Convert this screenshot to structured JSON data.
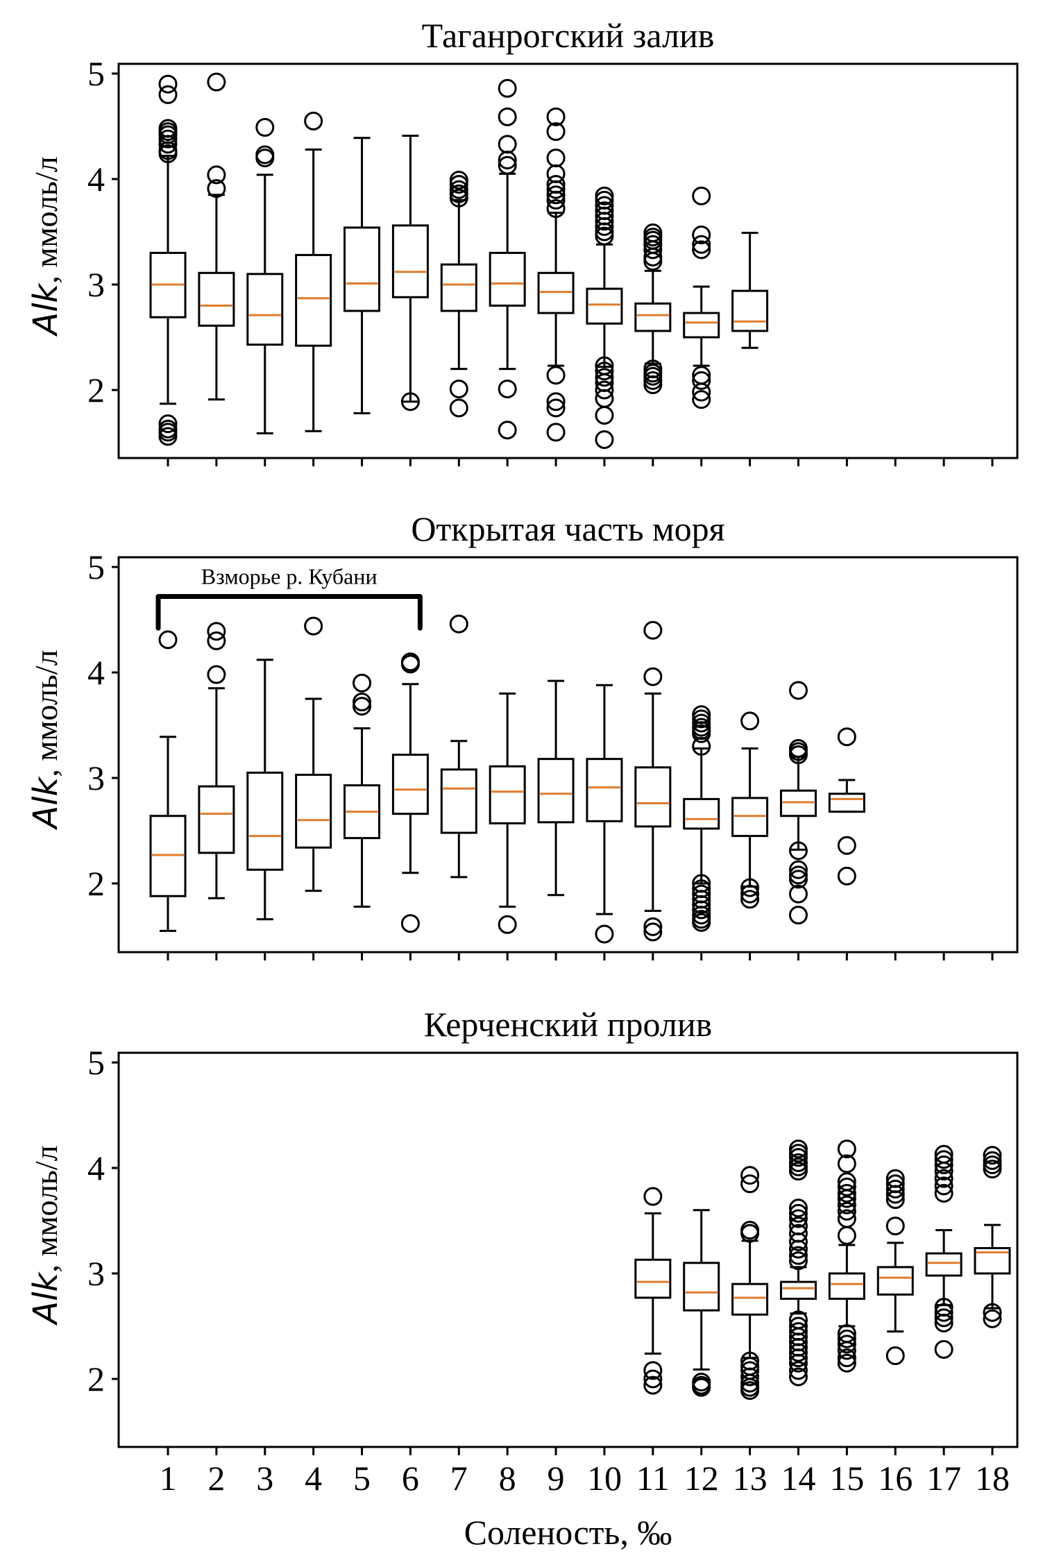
{
  "chart_data": {
    "type": "boxplot",
    "layout": "3 vertically stacked panels, shared x-axis",
    "xlabel": "Соленость, ‰",
    "x_ticks": [
      "1",
      "2",
      "3",
      "4",
      "5",
      "6",
      "7",
      "8",
      "9",
      "10",
      "11",
      "12",
      "13",
      "14",
      "15",
      "16",
      "17",
      "18"
    ],
    "y_ticks": [
      "2",
      "3",
      "4",
      "5"
    ],
    "ylim": [
      1.35,
      5.1
    ],
    "median_color": "#e07b2a",
    "box_color": "#000000",
    "panels": [
      {
        "title": "Таганрогский залив",
        "ylabel_italic": "Alk",
        "ylabel_rest": ", ммоль/л",
        "boxes": [
          {
            "x": 1,
            "q1": 2.69,
            "median": 3.0,
            "q3": 3.3,
            "whislo": 1.87,
            "whishi": 4.22,
            "fliers": [
              4.9,
              4.8,
              4.48,
              4.45,
              4.42,
              4.38,
              4.33,
              4.27,
              4.24,
              1.68,
              1.63,
              1.6,
              1.56
            ]
          },
          {
            "x": 2,
            "q1": 2.61,
            "median": 2.8,
            "q3": 3.11,
            "whislo": 1.91,
            "whishi": 3.85,
            "fliers": [
              4.92,
              4.04,
              3.91
            ]
          },
          {
            "x": 3,
            "q1": 2.43,
            "median": 2.71,
            "q3": 3.1,
            "whislo": 1.59,
            "whishi": 4.04,
            "fliers": [
              4.49,
              4.23,
              4.2
            ]
          },
          {
            "x": 4,
            "q1": 2.42,
            "median": 2.87,
            "q3": 3.28,
            "whislo": 1.61,
            "whishi": 4.28,
            "fliers": [
              4.55
            ]
          },
          {
            "x": 5,
            "q1": 2.75,
            "median": 3.01,
            "q3": 3.54,
            "whislo": 1.78,
            "whishi": 4.39,
            "fliers": []
          },
          {
            "x": 6,
            "q1": 2.88,
            "median": 3.12,
            "q3": 3.56,
            "whislo": 1.89,
            "whishi": 4.41,
            "fliers": [
              1.89
            ]
          },
          {
            "x": 7,
            "q1": 2.75,
            "median": 3.0,
            "q3": 3.19,
            "whislo": 2.2,
            "whishi": 3.8,
            "fliers": [
              3.99,
              3.95,
              3.9,
              3.86,
              3.82,
              2.01,
              1.83
            ]
          },
          {
            "x": 8,
            "q1": 2.8,
            "median": 3.01,
            "q3": 3.3,
            "whislo": 2.2,
            "whishi": 4.05,
            "fliers": [
              4.86,
              4.59,
              4.33,
              4.18,
              4.13,
              2.01,
              1.62
            ]
          },
          {
            "x": 9,
            "q1": 2.73,
            "median": 2.93,
            "q3": 3.11,
            "whislo": 2.23,
            "whishi": 3.68,
            "fliers": [
              4.59,
              4.45,
              4.2,
              4.05,
              3.95,
              3.9,
              3.85,
              3.8,
              3.72,
              2.14,
              1.89,
              1.83,
              1.6
            ]
          },
          {
            "x": 10,
            "q1": 2.63,
            "median": 2.81,
            "q3": 2.96,
            "whislo": 2.22,
            "whishi": 3.38,
            "fliers": [
              3.84,
              3.8,
              3.75,
              3.7,
              3.65,
              3.6,
              3.55,
              3.5,
              3.46,
              2.23,
              2.18,
              2.12,
              2.07,
              2.0,
              1.92,
              1.76,
              1.53
            ]
          },
          {
            "x": 11,
            "q1": 2.56,
            "median": 2.71,
            "q3": 2.82,
            "whislo": 2.25,
            "whishi": 3.13,
            "fliers": [
              3.49,
              3.45,
              3.42,
              3.38,
              3.33,
              3.26,
              3.22,
              2.2,
              2.16,
              2.13,
              2.09,
              2.05
            ]
          },
          {
            "x": 12,
            "q1": 2.5,
            "median": 2.64,
            "q3": 2.73,
            "whislo": 2.23,
            "whishi": 2.98,
            "fliers": [
              3.84,
              3.47,
              3.38,
              3.33,
              2.14,
              2.09,
              1.98,
              1.91
            ]
          },
          {
            "x": 13,
            "q1": 2.56,
            "median": 2.65,
            "q3": 2.94,
            "whislo": 2.4,
            "whishi": 3.49,
            "fliers": []
          }
        ]
      },
      {
        "title": "Открытая часть моря",
        "ylabel_italic": "Alk",
        "ylabel_rest": ", ммоль/л",
        "annotation": {
          "text": "Взморье р. Кубани",
          "x_from": 1,
          "x_to": 6
        },
        "boxes": [
          {
            "x": 1,
            "q1": 1.88,
            "median": 2.27,
            "q3": 2.64,
            "whislo": 1.55,
            "whishi": 3.39,
            "fliers": [
              4.31
            ]
          },
          {
            "x": 2,
            "q1": 2.29,
            "median": 2.66,
            "q3": 2.92,
            "whislo": 1.86,
            "whishi": 3.85,
            "fliers": [
              4.39,
              4.3,
              3.98
            ]
          },
          {
            "x": 3,
            "q1": 2.13,
            "median": 2.45,
            "q3": 3.05,
            "whislo": 1.66,
            "whishi": 4.12,
            "fliers": []
          },
          {
            "x": 4,
            "q1": 2.34,
            "median": 2.6,
            "q3": 3.03,
            "whislo": 1.93,
            "whishi": 3.75,
            "fliers": [
              4.44
            ]
          },
          {
            "x": 5,
            "q1": 2.43,
            "median": 2.68,
            "q3": 2.93,
            "whislo": 1.78,
            "whishi": 3.47,
            "fliers": [
              3.9,
              3.72,
              3.68
            ]
          },
          {
            "x": 6,
            "q1": 2.66,
            "median": 2.89,
            "q3": 3.22,
            "whislo": 2.1,
            "whishi": 3.89,
            "fliers": [
              4.1,
              4.08,
              1.62
            ]
          },
          {
            "x": 7,
            "q1": 2.48,
            "median": 2.9,
            "q3": 3.08,
            "whislo": 2.06,
            "whishi": 3.35,
            "fliers": [
              4.46
            ]
          },
          {
            "x": 8,
            "q1": 2.57,
            "median": 2.87,
            "q3": 3.11,
            "whislo": 1.78,
            "whishi": 3.8,
            "fliers": [
              1.61
            ]
          },
          {
            "x": 9,
            "q1": 2.58,
            "median": 2.85,
            "q3": 3.18,
            "whislo": 1.89,
            "whishi": 3.92,
            "fliers": []
          },
          {
            "x": 10,
            "q1": 2.59,
            "median": 2.91,
            "q3": 3.18,
            "whislo": 1.71,
            "whishi": 3.88,
            "fliers": [
              1.52
            ]
          },
          {
            "x": 11,
            "q1": 2.54,
            "median": 2.76,
            "q3": 3.1,
            "whislo": 1.74,
            "whishi": 3.8,
            "fliers": [
              4.4,
              3.96,
              1.59,
              1.54
            ]
          },
          {
            "x": 12,
            "q1": 2.52,
            "median": 2.61,
            "q3": 2.8,
            "whislo": 2.0,
            "whishi": 3.28,
            "fliers": [
              3.6,
              3.56,
              3.52,
              3.48,
              3.45,
              3.42,
              3.3,
              2.0,
              1.95,
              1.9,
              1.85,
              1.8,
              1.75,
              1.7,
              1.66,
              1.63
            ]
          },
          {
            "x": 13,
            "q1": 2.45,
            "median": 2.64,
            "q3": 2.81,
            "whislo": 1.97,
            "whishi": 3.28,
            "fliers": [
              3.54,
              1.96,
              1.9,
              1.85
            ]
          },
          {
            "x": 14,
            "q1": 2.64,
            "median": 2.77,
            "q3": 2.88,
            "whislo": 2.32,
            "whishi": 3.2,
            "fliers": [
              3.83,
              3.28,
              3.25,
              3.22,
              2.31,
              2.13,
              2.08,
              2.04,
              1.9,
              1.7
            ]
          },
          {
            "x": 15,
            "q1": 2.68,
            "median": 2.8,
            "q3": 2.85,
            "whislo": 2.68,
            "whishi": 2.98,
            "fliers": [
              3.39,
              2.36,
              2.07
            ]
          }
        ]
      },
      {
        "title": "Керченский пролив",
        "ylabel_italic": "Alk",
        "ylabel_rest": ", ммоль/л",
        "boxes": [
          {
            "x": 11,
            "q1": 2.77,
            "median": 2.92,
            "q3": 3.13,
            "whislo": 2.24,
            "whishi": 3.57,
            "fliers": [
              3.73,
              2.08,
              2.0,
              1.94
            ]
          },
          {
            "x": 12,
            "q1": 2.65,
            "median": 2.82,
            "q3": 3.1,
            "whislo": 2.09,
            "whishi": 3.6,
            "fliers": [
              1.97,
              1.94,
              1.92
            ]
          },
          {
            "x": 13,
            "q1": 2.61,
            "median": 2.77,
            "q3": 2.9,
            "whislo": 2.2,
            "whishi": 3.31,
            "fliers": [
              3.93,
              3.85,
              3.41,
              3.38,
              2.17,
              2.12,
              2.08,
              2.02,
              1.96,
              1.92,
              1.89
            ]
          },
          {
            "x": 14,
            "q1": 2.76,
            "median": 2.86,
            "q3": 2.92,
            "whislo": 2.62,
            "whishi": 3.06,
            "fliers": [
              4.18,
              4.14,
              4.1,
              4.05,
              4.01,
              3.97,
              3.62,
              3.57,
              3.52,
              3.45,
              3.38,
              3.3,
              3.23,
              3.17,
              3.12,
              2.56,
              2.5,
              2.45,
              2.4,
              2.35,
              2.3,
              2.25,
              2.2,
              2.15,
              2.08,
              2.02
            ]
          },
          {
            "x": 15,
            "q1": 2.76,
            "median": 2.9,
            "q3": 3.0,
            "whislo": 2.5,
            "whishi": 3.27,
            "fliers": [
              4.18,
              4.04,
              3.87,
              3.82,
              3.76,
              3.71,
              3.65,
              3.59,
              3.52,
              3.36,
              2.43,
              2.38,
              2.33,
              2.27,
              2.2,
              2.15
            ]
          },
          {
            "x": 16,
            "q1": 2.8,
            "median": 2.96,
            "q3": 3.06,
            "whislo": 2.45,
            "whishi": 3.29,
            "fliers": [
              3.9,
              3.85,
              3.8,
              3.75,
              3.7,
              3.45,
              2.22
            ]
          },
          {
            "x": 17,
            "q1": 2.98,
            "median": 3.1,
            "q3": 3.19,
            "whislo": 2.7,
            "whishi": 3.41,
            "fliers": [
              4.13,
              4.08,
              4.03,
              3.97,
              3.9,
              3.83,
              3.76,
              2.68,
              2.63,
              2.58,
              2.53,
              2.28
            ]
          },
          {
            "x": 18,
            "q1": 3.0,
            "median": 3.2,
            "q3": 3.24,
            "whislo": 2.67,
            "whishi": 3.46,
            "fliers": [
              4.12,
              4.07,
              4.03,
              3.99,
              2.63,
              2.57
            ]
          }
        ]
      }
    ]
  }
}
